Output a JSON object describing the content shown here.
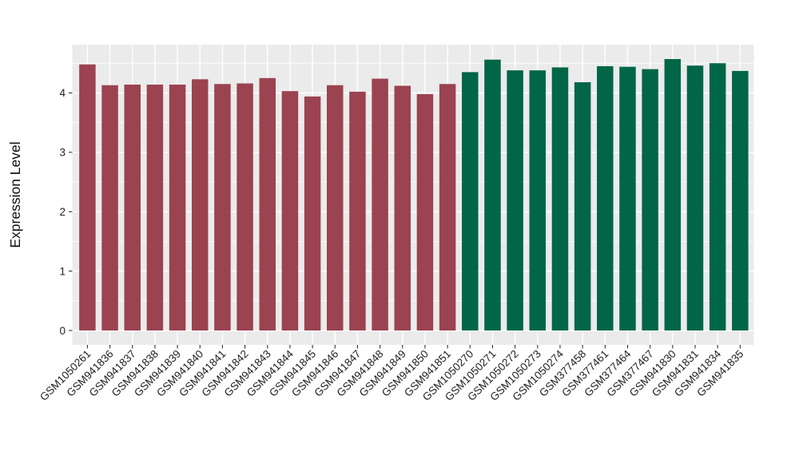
{
  "chart_data": {
    "type": "bar",
    "title": "",
    "xlabel": "",
    "ylabel": "Expression Level",
    "categories": [
      "GSM1050261",
      "GSM941836",
      "GSM941837",
      "GSM941838",
      "GSM941839",
      "GSM941840",
      "GSM941841",
      "GSM941842",
      "GSM941843",
      "GSM941844",
      "GSM941845",
      "GSM941846",
      "GSM941847",
      "GSM941848",
      "GSM941849",
      "GSM941850",
      "GSM941851",
      "GSM1050270",
      "GSM1050271",
      "GSM1050272",
      "GSM1050273",
      "GSM1050274",
      "GSM377458",
      "GSM377461",
      "GSM377464",
      "GSM377467",
      "GSM941830",
      "GSM941831",
      "GSM941834",
      "GSM941835"
    ],
    "values": [
      4.48,
      4.13,
      4.14,
      4.14,
      4.14,
      4.23,
      4.15,
      4.16,
      4.25,
      4.03,
      3.94,
      4.13,
      4.02,
      4.24,
      4.12,
      3.98,
      4.15,
      4.35,
      4.56,
      4.38,
      4.38,
      4.43,
      4.18,
      4.45,
      4.44,
      4.4,
      4.57,
      4.46,
      4.5,
      4.37
    ],
    "groups": [
      "maroon",
      "maroon",
      "maroon",
      "maroon",
      "maroon",
      "maroon",
      "maroon",
      "maroon",
      "maroon",
      "maroon",
      "maroon",
      "maroon",
      "maroon",
      "maroon",
      "maroon",
      "maroon",
      "maroon",
      "green",
      "green",
      "green",
      "green",
      "green",
      "green",
      "green",
      "green",
      "green",
      "green",
      "green",
      "green",
      "green"
    ],
    "group_colors": {
      "maroon": "#9B4350",
      "green": "#006647"
    },
    "yticks": [
      0,
      1,
      2,
      3,
      4
    ],
    "yticks_minor": [
      0.5,
      1.5,
      2.5,
      3.5,
      4.5
    ],
    "ylim": [
      0,
      4.8
    ],
    "grid": "on",
    "legend": "none",
    "x_label_rotation": -45,
    "panel_bg": "#EBEBEB",
    "grid_color": "#FFFFFF",
    "axis_text_color": "#1F1F1F",
    "tick_mark_color": "#333333"
  }
}
